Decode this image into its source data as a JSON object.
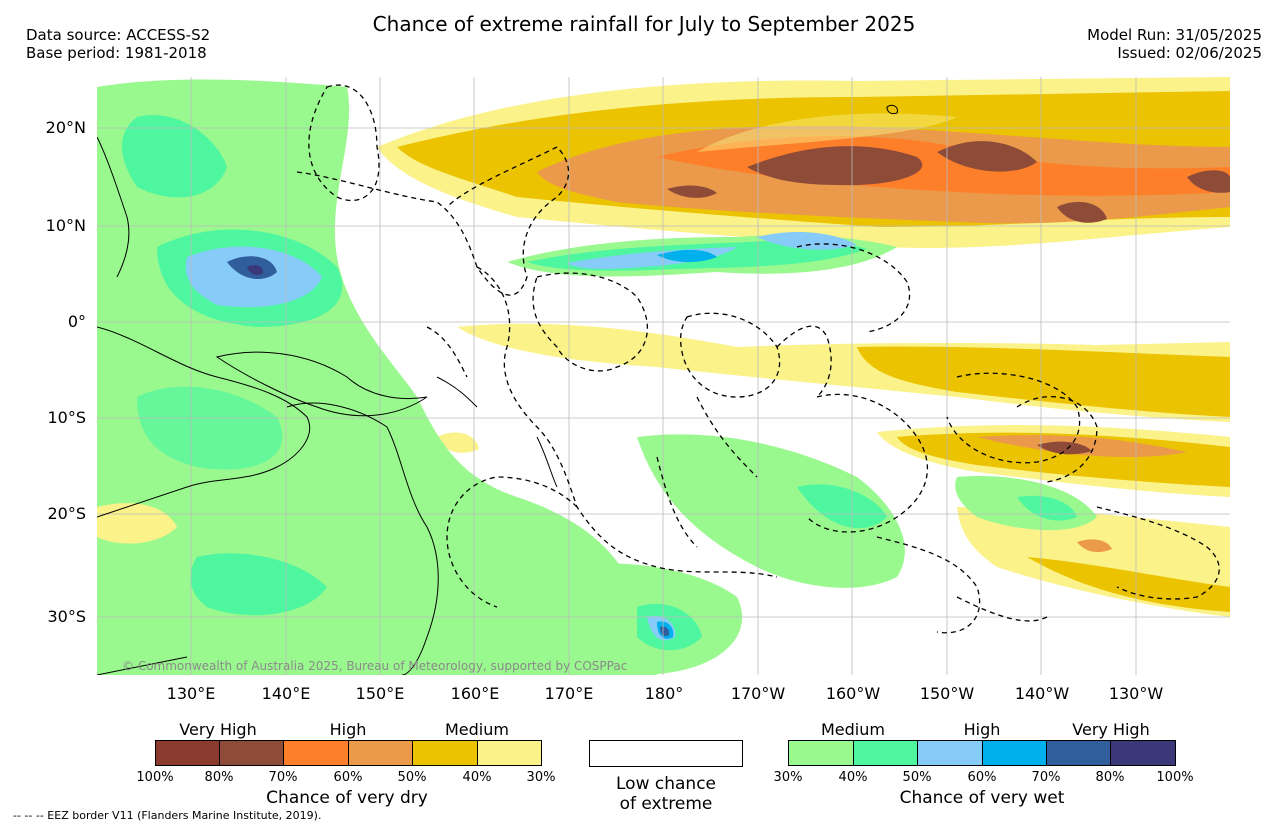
{
  "header": {
    "title": "Chance of extreme rainfall for July to September 2025",
    "data_source": "Data source: ACCESS-S2",
    "base_period": "Base period: 1981-2018",
    "model_run": "Model Run: 31/05/2025",
    "issued": "Issued: 02/06/2025"
  },
  "map": {
    "copyright": "© Commonwealth of Australia 2025, Bureau of Meteorology, supported by COSPPac",
    "lon_labels": [
      "130°E",
      "140°E",
      "150°E",
      "160°E",
      "170°E",
      "180°",
      "170°W",
      "160°W",
      "150°W",
      "140°W",
      "130°W"
    ],
    "lat_labels": [
      "20°N",
      "10°N",
      "0°",
      "10°S",
      "20°S",
      "30°S"
    ],
    "lon_range": [
      120,
      240
    ],
    "lat_range": [
      -36,
      25
    ],
    "colors": {
      "land_outline": "#000000",
      "eez_border": "#000000",
      "grid": "#bbbbbb"
    }
  },
  "legend": {
    "dry": {
      "categories": [
        "Very High",
        "High",
        "Medium"
      ],
      "colors": [
        "#8B3A2E",
        "#8E4C38",
        "#FE7F2A",
        "#EA9A4A",
        "#EBC300",
        "#FBF289"
      ],
      "ticks": [
        "100%",
        "80%",
        "70%",
        "60%",
        "50%",
        "40%",
        "30%"
      ],
      "label": "Chance of very dry"
    },
    "low": {
      "line1": "Low chance",
      "line2": "of extreme"
    },
    "wet": {
      "categories": [
        "Medium",
        "High",
        "Very High"
      ],
      "colors": [
        "#9AF98E",
        "#4FF6A0",
        "#87CBF9",
        "#00B0EC",
        "#305D9B",
        "#3A3878"
      ],
      "ticks": [
        "30%",
        "40%",
        "50%",
        "60%",
        "70%",
        "80%",
        "100%"
      ],
      "label": "Chance of very wet"
    }
  },
  "footnote": "--  --  -- EEZ border V11 (Flanders Marine Institute, 2019)."
}
